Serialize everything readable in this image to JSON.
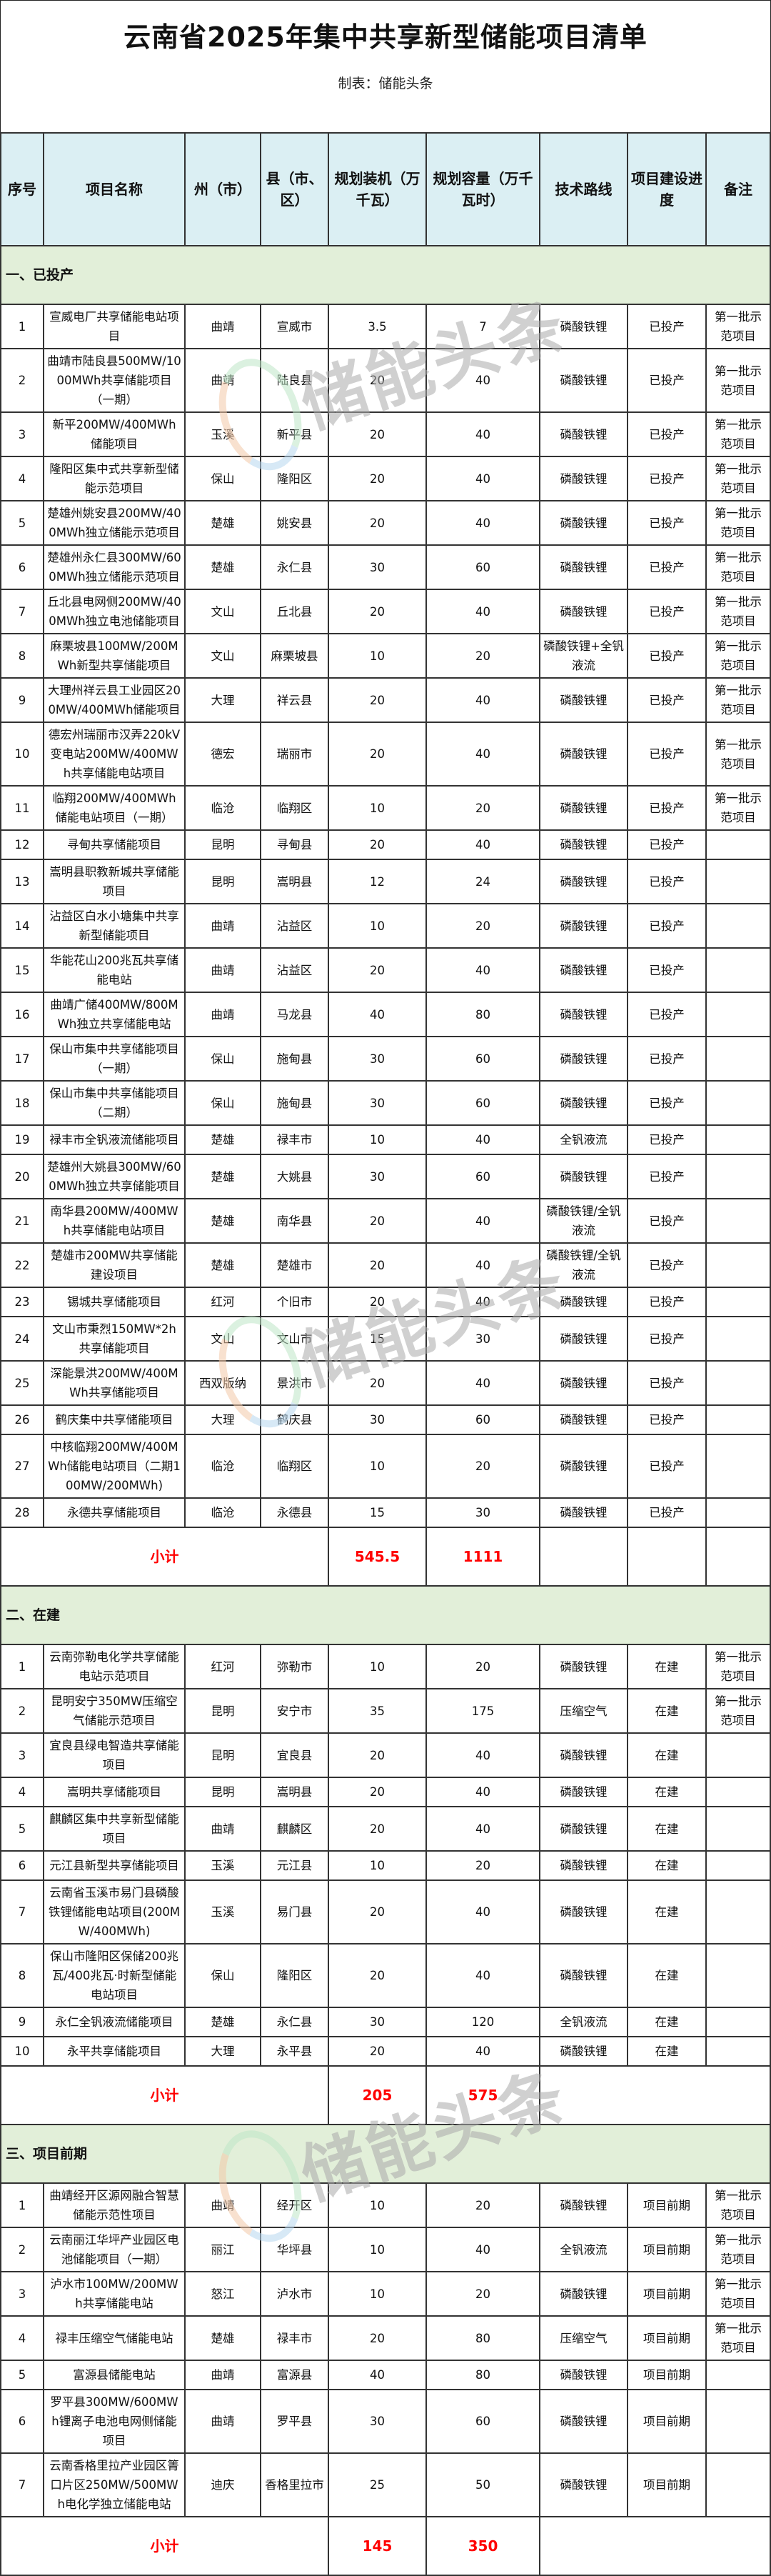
{
  "title": "云南省2025年集中共享新型储能项目清单",
  "subtitle": "制表：储能头条",
  "watermark": "储能头条",
  "colors": {
    "header_bg": "#dbeff3",
    "section_bg": "#e2efd9",
    "subtotal_text": "#ff0000"
  },
  "headers": [
    "序号",
    "项目名称",
    "州（市）",
    "县（市、区）",
    "规划装机（万千瓦）",
    "规划容量（万千瓦时）",
    "技术路线",
    "项目建设进度",
    "备注"
  ],
  "subtotal_label": "小计",
  "sections": [
    {
      "title": "一、已投产",
      "rows": [
        [
          "1",
          "宣威电厂共享储能电站项目",
          "曲靖",
          "宣威市",
          "3.5",
          "7",
          "磷酸铁锂",
          "已投产",
          "第一批示范项目"
        ],
        [
          "2",
          "曲靖市陆良县500MW/1000MWh共享储能项目（一期）",
          "曲靖",
          "陆良县",
          "20",
          "40",
          "磷酸铁锂",
          "已投产",
          "第一批示范项目"
        ],
        [
          "3",
          "新平200MW/400MWh储能项目",
          "玉溪",
          "新平县",
          "20",
          "40",
          "磷酸铁锂",
          "已投产",
          "第一批示范项目"
        ],
        [
          "4",
          "隆阳区集中式共享新型储能示范项目",
          "保山",
          "隆阳区",
          "20",
          "40",
          "磷酸铁锂",
          "已投产",
          "第一批示范项目"
        ],
        [
          "5",
          "楚雄州姚安县200MW/400MWh独立储能示范项目",
          "楚雄",
          "姚安县",
          "20",
          "40",
          "磷酸铁锂",
          "已投产",
          "第一批示范项目"
        ],
        [
          "6",
          "楚雄州永仁县300MW/600MWh独立储能示范项目",
          "楚雄",
          "永仁县",
          "30",
          "60",
          "磷酸铁锂",
          "已投产",
          "第一批示范项目"
        ],
        [
          "7",
          "丘北县电网侧200MW/400MWh独立电池储能项目",
          "文山",
          "丘北县",
          "20",
          "40",
          "磷酸铁锂",
          "已投产",
          "第一批示范项目"
        ],
        [
          "8",
          "麻栗坡县100MW/200MWh新型共享储能项目",
          "文山",
          "麻栗坡县",
          "10",
          "20",
          "磷酸铁锂+全钒液流",
          "已投产",
          "第一批示范项目"
        ],
        [
          "9",
          "大理州祥云县工业园区200MW/400MWh储能项目",
          "大理",
          "祥云县",
          "20",
          "40",
          "磷酸铁锂",
          "已投产",
          "第一批示范项目"
        ],
        [
          "10",
          "德宏州瑞丽市汉弄220kV变电站200MW/400MWh共享储能电站项目",
          "德宏",
          "瑞丽市",
          "20",
          "40",
          "磷酸铁锂",
          "已投产",
          "第一批示范项目"
        ],
        [
          "11",
          "临翔200MW/400MWh储能电站项目（一期）",
          "临沧",
          "临翔区",
          "10",
          "20",
          "磷酸铁锂",
          "已投产",
          "第一批示范项目"
        ],
        [
          "12",
          "寻甸共享储能项目",
          "昆明",
          "寻甸县",
          "20",
          "40",
          "磷酸铁锂",
          "已投产",
          ""
        ],
        [
          "13",
          "嵩明县职教新城共享储能项目",
          "昆明",
          "嵩明县",
          "12",
          "24",
          "磷酸铁锂",
          "已投产",
          ""
        ],
        [
          "14",
          "沾益区白水小塘集中共享新型储能项目",
          "曲靖",
          "沾益区",
          "10",
          "20",
          "磷酸铁锂",
          "已投产",
          ""
        ],
        [
          "15",
          "华能花山200兆瓦共享储能电站",
          "曲靖",
          "沾益区",
          "20",
          "40",
          "磷酸铁锂",
          "已投产",
          ""
        ],
        [
          "16",
          "曲靖广储400MW/800MWh独立共享储能电站",
          "曲靖",
          "马龙县",
          "40",
          "80",
          "磷酸铁锂",
          "已投产",
          ""
        ],
        [
          "17",
          "保山市集中共享储能项目（一期）",
          "保山",
          "施甸县",
          "30",
          "60",
          "磷酸铁锂",
          "已投产",
          ""
        ],
        [
          "18",
          "保山市集中共享储能项目（二期）",
          "保山",
          "施甸县",
          "30",
          "60",
          "磷酸铁锂",
          "已投产",
          ""
        ],
        [
          "19",
          "禄丰市全钒液流储能项目",
          "楚雄",
          "禄丰市",
          "10",
          "40",
          "全钒液流",
          "已投产",
          ""
        ],
        [
          "20",
          "楚雄州大姚县300MW/600MWh独立共享储能项目",
          "楚雄",
          "大姚县",
          "30",
          "60",
          "磷酸铁锂",
          "已投产",
          ""
        ],
        [
          "21",
          "南华县200MW/400MWh共享储能电站项目",
          "楚雄",
          "南华县",
          "20",
          "40",
          "磷酸铁锂/全钒液流",
          "已投产",
          ""
        ],
        [
          "22",
          "楚雄市200MW共享储能建设项目",
          "楚雄",
          "楚雄市",
          "20",
          "40",
          "磷酸铁锂/全钒液流",
          "已投产",
          ""
        ],
        [
          "23",
          "锡城共享储能项目",
          "红河",
          "个旧市",
          "20",
          "40",
          "磷酸铁锂",
          "已投产",
          ""
        ],
        [
          "24",
          "文山市秉烈150MW*2h共享储能项目",
          "文山",
          "文山市",
          "15",
          "30",
          "磷酸铁锂",
          "已投产",
          ""
        ],
        [
          "25",
          "深能景洪200MW/400MWh共享储能项目",
          "西双版纳",
          "景洪市",
          "20",
          "40",
          "磷酸铁锂",
          "已投产",
          ""
        ],
        [
          "26",
          "鹤庆集中共享储能项目",
          "大理",
          "鹤庆县",
          "30",
          "60",
          "磷酸铁锂",
          "已投产",
          ""
        ],
        [
          "27",
          "中核临翔200MW/400MWh储能电站项目（二期100MW/200MWh)",
          "临沧",
          "临翔区",
          "10",
          "20",
          "磷酸铁锂",
          "已投产",
          ""
        ],
        [
          "28",
          "永德共享储能项目",
          "临沧",
          "永德县",
          "15",
          "30",
          "磷酸铁锂",
          "已投产",
          ""
        ]
      ],
      "subtotal": {
        "power": "545.5",
        "capacity": "1111"
      }
    },
    {
      "title": "二、在建",
      "rows": [
        [
          "1",
          "云南弥勒电化学共享储能电站示范项目",
          "红河",
          "弥勒市",
          "10",
          "20",
          "磷酸铁锂",
          "在建",
          "第一批示范项目"
        ],
        [
          "2",
          "昆明安宁350MW压缩空气储能示范项目",
          "昆明",
          "安宁市",
          "35",
          "175",
          "压缩空气",
          "在建",
          "第一批示范项目"
        ],
        [
          "3",
          "宜良县绿电智造共享储能项目",
          "昆明",
          "宜良县",
          "20",
          "40",
          "磷酸铁锂",
          "在建",
          ""
        ],
        [
          "4",
          "嵩明共享储能项目",
          "昆明",
          "嵩明县",
          "20",
          "40",
          "磷酸铁锂",
          "在建",
          ""
        ],
        [
          "5",
          "麒麟区集中共享新型储能项目",
          "曲靖",
          "麒麟区",
          "20",
          "40",
          "磷酸铁锂",
          "在建",
          ""
        ],
        [
          "6",
          "元江县新型共享储能项目",
          "玉溪",
          "元江县",
          "10",
          "20",
          "磷酸铁锂",
          "在建",
          ""
        ],
        [
          "7",
          "云南省玉溪市易门县磷酸铁锂储能电站项目(200MW/400MWh)",
          "玉溪",
          "易门县",
          "20",
          "40",
          "磷酸铁锂",
          "在建",
          ""
        ],
        [
          "8",
          "保山市隆阳区保储200兆瓦/400兆瓦·时新型储能电站项目",
          "保山",
          "隆阳区",
          "20",
          "40",
          "磷酸铁锂",
          "在建",
          ""
        ],
        [
          "9",
          "永仁全钒液流储能项目",
          "楚雄",
          "永仁县",
          "30",
          "120",
          "全钒液流",
          "在建",
          ""
        ],
        [
          "10",
          "永平共享储能项目",
          "大理",
          "永平县",
          "20",
          "40",
          "磷酸铁锂",
          "在建",
          ""
        ]
      ],
      "subtotal": {
        "power": "205",
        "capacity": "575"
      }
    },
    {
      "title": "三、项目前期",
      "rows": [
        [
          "1",
          "曲靖经开区源网融合智慧储能示范性项目",
          "曲靖",
          "经开区",
          "10",
          "20",
          "磷酸铁锂",
          "项目前期",
          "第一批示范项目"
        ],
        [
          "2",
          "云南丽江华坪产业园区电池储能项目（一期）",
          "丽江",
          "华坪县",
          "10",
          "40",
          "全钒液流",
          "项目前期",
          "第一批示范项目"
        ],
        [
          "3",
          "泸水市100MW/200MWh共享储能电站",
          "怒江",
          "泸水市",
          "10",
          "20",
          "磷酸铁锂",
          "项目前期",
          "第一批示范项目"
        ],
        [
          "4",
          "禄丰压缩空气储能电站",
          "楚雄",
          "禄丰市",
          "20",
          "80",
          "压缩空气",
          "项目前期",
          "第一批示范项目"
        ],
        [
          "5",
          "富源县储能电站",
          "曲靖",
          "富源县",
          "40",
          "80",
          "磷酸铁锂",
          "项目前期",
          ""
        ],
        [
          "6",
          "罗平县300MW/600MWh锂离子电池电网侧储能项目",
          "曲靖",
          "罗平县",
          "30",
          "60",
          "磷酸铁锂",
          "项目前期",
          ""
        ],
        [
          "7",
          "云南香格里拉产业园区箐口片区250MW/500MWh电化学独立储能电站",
          "迪庆",
          "香格里拉市",
          "25",
          "50",
          "磷酸铁锂",
          "项目前期",
          ""
        ]
      ],
      "subtotal": {
        "power": "145",
        "capacity": "350"
      }
    }
  ]
}
